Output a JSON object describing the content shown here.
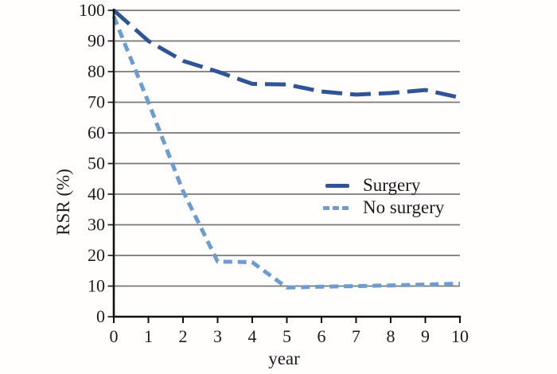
{
  "chart_data": {
    "type": "line",
    "title": "",
    "xlabel": "year",
    "ylabel": "RSR (%)",
    "xlim": [
      0,
      10
    ],
    "ylim": [
      0,
      100
    ],
    "x_ticks": [
      0,
      1,
      2,
      3,
      4,
      5,
      6,
      7,
      8,
      9,
      10
    ],
    "y_ticks": [
      0,
      10,
      20,
      30,
      40,
      50,
      60,
      70,
      80,
      90,
      100
    ],
    "grid": "horizontal",
    "legend_position": "inside-right",
    "x": [
      0,
      1,
      2,
      3,
      4,
      5,
      6,
      7,
      8,
      9,
      10
    ],
    "series": [
      {
        "name": "Surgery",
        "color": "#2F5597",
        "line_style": "long-dash",
        "values": [
          100,
          90,
          83.5,
          80,
          76,
          75.8,
          73.5,
          72.5,
          73,
          74,
          71.5
        ]
      },
      {
        "name": "No surgery",
        "color": "#6E9BD0",
        "line_style": "short-dash",
        "values": [
          98,
          70,
          41,
          18,
          17.8,
          9.5,
          9.8,
          10,
          10.2,
          10.5,
          10.8
        ]
      }
    ]
  },
  "colors": {
    "gridline": "#777777",
    "axis": "#111111",
    "text": "#1c1c1c",
    "background": "#fffefd"
  }
}
